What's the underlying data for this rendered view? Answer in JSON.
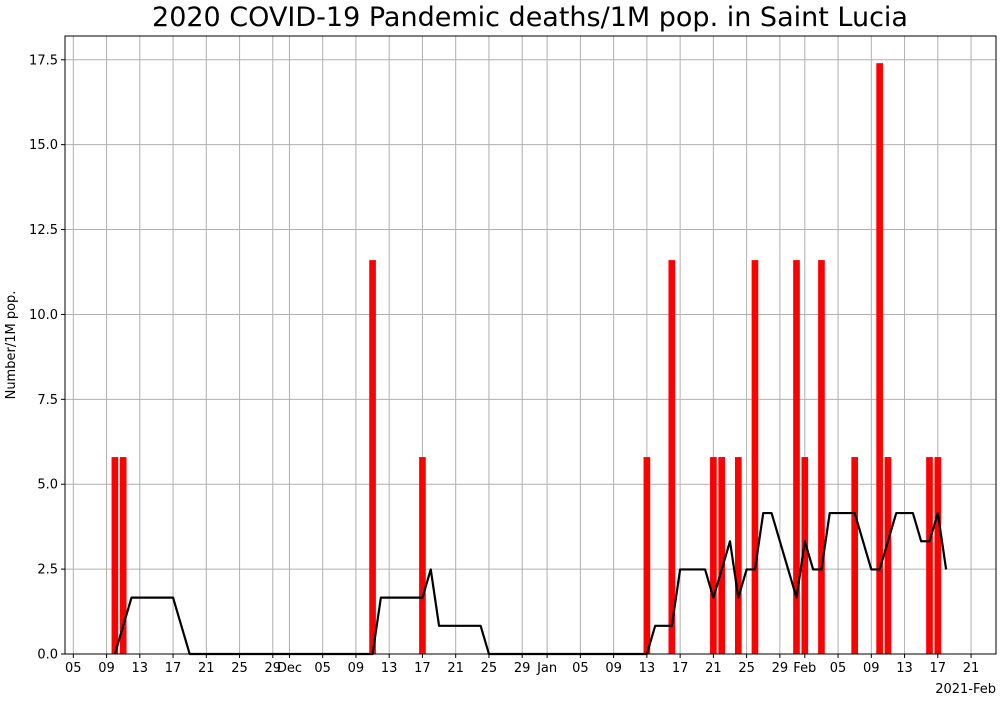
{
  "chart_data": {
    "type": "bar",
    "title": "2020 COVID-19 Pandemic deaths/1M pop. in Saint Lucia",
    "ylabel": "Number/1M pop.",
    "xlabel": "",
    "x_offset_label": "2021-Feb",
    "x_range": [
      "2020-11-04",
      "2021-02-24"
    ],
    "ylim": [
      0,
      18.2
    ],
    "grid": true,
    "y_ticks": [
      {
        "value": 0,
        "label": "0.0"
      },
      {
        "value": 2.5,
        "label": "2.5"
      },
      {
        "value": 5,
        "label": "5.0"
      },
      {
        "value": 7.5,
        "label": "7.5"
      },
      {
        "value": 10,
        "label": "10.0"
      },
      {
        "value": 12.5,
        "label": "12.5"
      },
      {
        "value": 15,
        "label": "15.0"
      },
      {
        "value": 17.5,
        "label": "17.5"
      }
    ],
    "x_ticks": [
      {
        "date": "2020-11-05",
        "label": "05"
      },
      {
        "date": "2020-11-09",
        "label": "09"
      },
      {
        "date": "2020-11-13",
        "label": "13"
      },
      {
        "date": "2020-11-17",
        "label": "17"
      },
      {
        "date": "2020-11-21",
        "label": "21"
      },
      {
        "date": "2020-11-25",
        "label": "25"
      },
      {
        "date": "2020-11-29",
        "label": "29"
      },
      {
        "date": "2020-12-01",
        "label": "Dec"
      },
      {
        "date": "2020-12-05",
        "label": "05"
      },
      {
        "date": "2020-12-09",
        "label": "09"
      },
      {
        "date": "2020-12-13",
        "label": "13"
      },
      {
        "date": "2020-12-17",
        "label": "17"
      },
      {
        "date": "2020-12-21",
        "label": "21"
      },
      {
        "date": "2020-12-25",
        "label": "25"
      },
      {
        "date": "2020-12-29",
        "label": "29"
      },
      {
        "date": "2021-01-01",
        "label": "Jan"
      },
      {
        "date": "2021-01-05",
        "label": "05"
      },
      {
        "date": "2021-01-09",
        "label": "09"
      },
      {
        "date": "2021-01-13",
        "label": "13"
      },
      {
        "date": "2021-01-17",
        "label": "17"
      },
      {
        "date": "2021-01-21",
        "label": "21"
      },
      {
        "date": "2021-01-25",
        "label": "25"
      },
      {
        "date": "2021-01-29",
        "label": "29"
      },
      {
        "date": "2021-02-01",
        "label": "Feb"
      },
      {
        "date": "2021-02-05",
        "label": "05"
      },
      {
        "date": "2021-02-09",
        "label": "09"
      },
      {
        "date": "2021-02-13",
        "label": "13"
      },
      {
        "date": "2021-02-17",
        "label": "17"
      },
      {
        "date": "2021-02-21",
        "label": "21"
      }
    ],
    "series": [
      {
        "type": "bar",
        "color": "#ff0000",
        "points": [
          {
            "date": "2020-11-10",
            "value": 5.8
          },
          {
            "date": "2020-11-11",
            "value": 5.8
          },
          {
            "date": "2020-12-11",
            "value": 11.6
          },
          {
            "date": "2020-12-17",
            "value": 5.8
          },
          {
            "date": "2021-01-13",
            "value": 5.8
          },
          {
            "date": "2021-01-16",
            "value": 11.6
          },
          {
            "date": "2021-01-21",
            "value": 5.8
          },
          {
            "date": "2021-01-22",
            "value": 5.8
          },
          {
            "date": "2021-01-24",
            "value": 5.8
          },
          {
            "date": "2021-01-26",
            "value": 11.6
          },
          {
            "date": "2021-01-31",
            "value": 11.6
          },
          {
            "date": "2021-02-01",
            "value": 5.8
          },
          {
            "date": "2021-02-03",
            "value": 11.6
          },
          {
            "date": "2021-02-07",
            "value": 5.8
          },
          {
            "date": "2021-02-10",
            "value": 17.4
          },
          {
            "date": "2021-02-11",
            "value": 5.8
          },
          {
            "date": "2021-02-16",
            "value": 5.8
          },
          {
            "date": "2021-02-17",
            "value": 5.8
          }
        ]
      },
      {
        "type": "line",
        "color": "#000000",
        "points": [
          {
            "date": "2020-11-10",
            "value": 0
          },
          {
            "date": "2020-11-11",
            "value": 0.83
          },
          {
            "date": "2020-11-12",
            "value": 1.66
          },
          {
            "date": "2020-11-17",
            "value": 1.66
          },
          {
            "date": "2020-11-19",
            "value": 0
          },
          {
            "date": "2020-12-11",
            "value": 0
          },
          {
            "date": "2020-12-12",
            "value": 1.66
          },
          {
            "date": "2020-12-17",
            "value": 1.66
          },
          {
            "date": "2020-12-18",
            "value": 2.49
          },
          {
            "date": "2020-12-19",
            "value": 0.83
          },
          {
            "date": "2020-12-24",
            "value": 0.83
          },
          {
            "date": "2020-12-25",
            "value": 0
          },
          {
            "date": "2021-01-13",
            "value": 0
          },
          {
            "date": "2021-01-14",
            "value": 0.83
          },
          {
            "date": "2021-01-16",
            "value": 0.83
          },
          {
            "date": "2021-01-17",
            "value": 2.49
          },
          {
            "date": "2021-01-20",
            "value": 2.49
          },
          {
            "date": "2021-01-21",
            "value": 1.66
          },
          {
            "date": "2021-01-23",
            "value": 3.32
          },
          {
            "date": "2021-01-24",
            "value": 1.66
          },
          {
            "date": "2021-01-25",
            "value": 2.49
          },
          {
            "date": "2021-01-26",
            "value": 2.49
          },
          {
            "date": "2021-01-27",
            "value": 4.15
          },
          {
            "date": "2021-01-28",
            "value": 4.15
          },
          {
            "date": "2021-01-30",
            "value": 2.49
          },
          {
            "date": "2021-01-31",
            "value": 1.66
          },
          {
            "date": "2021-02-01",
            "value": 3.32
          },
          {
            "date": "2021-02-02",
            "value": 2.49
          },
          {
            "date": "2021-02-03",
            "value": 2.49
          },
          {
            "date": "2021-02-04",
            "value": 4.15
          },
          {
            "date": "2021-02-07",
            "value": 4.15
          },
          {
            "date": "2021-02-09",
            "value": 2.49
          },
          {
            "date": "2021-02-10",
            "value": 2.49
          },
          {
            "date": "2021-02-12",
            "value": 4.15
          },
          {
            "date": "2021-02-14",
            "value": 4.15
          },
          {
            "date": "2021-02-15",
            "value": 3.32
          },
          {
            "date": "2021-02-16",
            "value": 3.32
          },
          {
            "date": "2021-02-17",
            "value": 4.15
          },
          {
            "date": "2021-02-18",
            "value": 2.49
          }
        ]
      }
    ]
  }
}
